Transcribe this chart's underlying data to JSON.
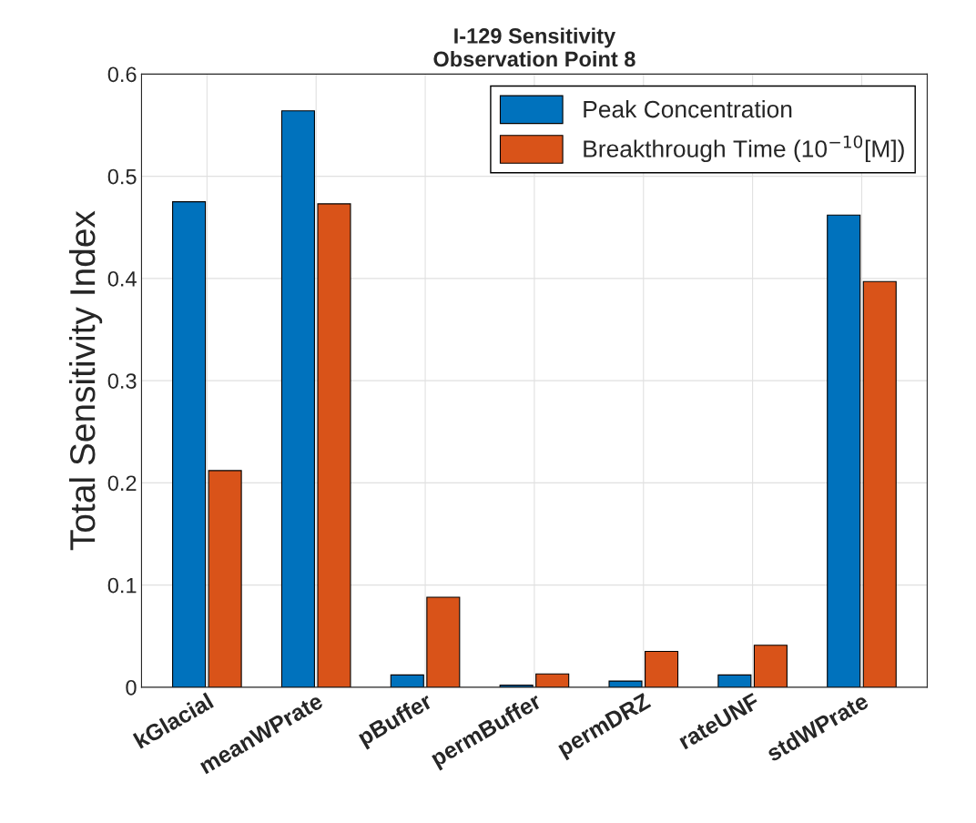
{
  "chart_data": {
    "type": "bar",
    "title": "I-129 Sensitivity\nObservation Point 8",
    "ylabel": "Total Sensitivity Index",
    "categories": [
      "kGlacial",
      "meanWPrate",
      "pBuffer",
      "permBuffer",
      "permDRZ",
      "rateUNF",
      "stdWPrate"
    ],
    "series": [
      {
        "name": "Peak Concentration",
        "color": "#0072bd",
        "values": [
          0.475,
          0.564,
          0.012,
          0.002,
          0.006,
          0.012,
          0.462
        ]
      },
      {
        "name": "Breakthrough Time (10$^{−10}$[M])",
        "color": "#d95319",
        "values": [
          0.212,
          0.473,
          0.088,
          0.013,
          0.035,
          0.041,
          0.397
        ]
      }
    ],
    "ylim": [
      0,
      0.6
    ],
    "yticks": [
      0,
      0.1,
      0.2,
      0.3,
      0.4,
      0.5,
      0.6
    ],
    "grid": true,
    "legend": "top right"
  }
}
